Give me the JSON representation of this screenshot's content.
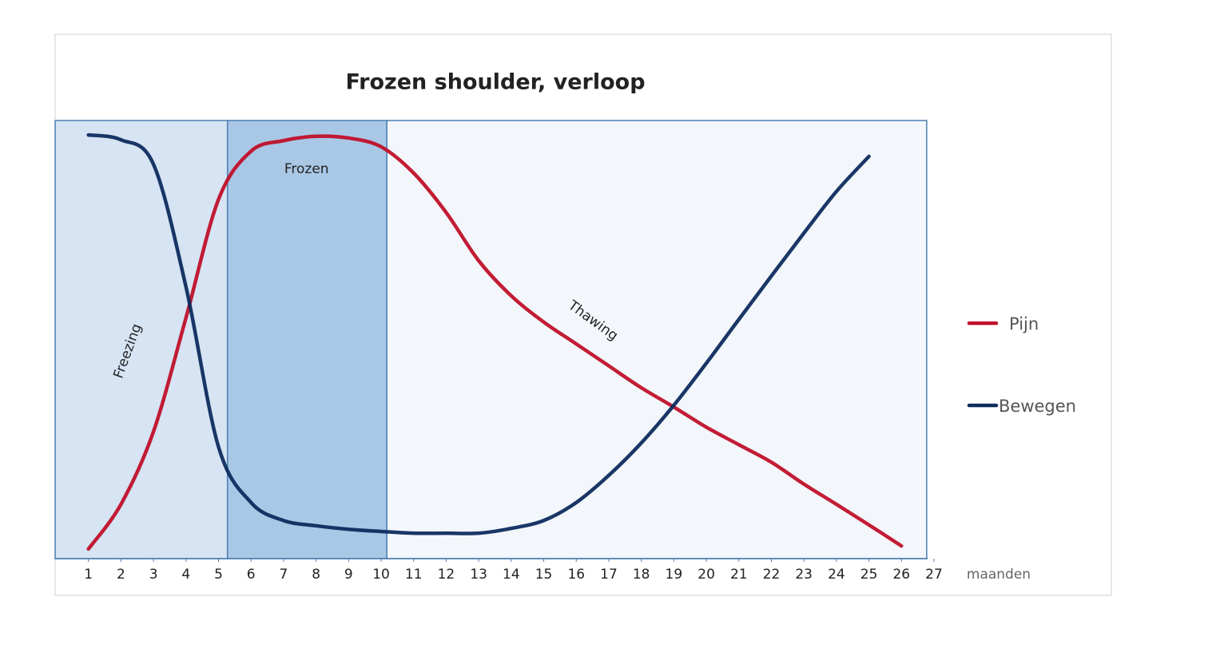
{
  "chart_data": {
    "type": "line",
    "title": "Frozen shoulder, verloop",
    "x_label": "maanden",
    "x": [
      1,
      2,
      3,
      4,
      5,
      6,
      7,
      8,
      9,
      10,
      11,
      12,
      13,
      14,
      15,
      16,
      17,
      18,
      19,
      20,
      21,
      22,
      23,
      24,
      25,
      26
    ],
    "series": [
      {
        "name": "Pijn",
        "color": "#c0102a",
        "values": [
          2.2,
          12.4,
          29,
          55,
          82,
          93,
          95.4,
          96.4,
          96,
          94,
          88,
          79,
          68,
          60,
          54,
          49,
          44,
          39,
          34.6,
          30,
          26,
          22,
          17,
          12.4,
          7.7,
          2.9
        ]
      },
      {
        "name": "Bewegen",
        "color": "#0d2b5e",
        "values": [
          96.7,
          95.6,
          90,
          62,
          25.5,
          12.8,
          8.7,
          7.5,
          6.7,
          6.2,
          5.8,
          5.8,
          5.8,
          6.9,
          8.7,
          12.8,
          19,
          26.4,
          35,
          44.6,
          54.6,
          64.5,
          74.3,
          83.8,
          91.8,
          null
        ]
      }
    ],
    "phases": [
      {
        "label": "Freezing",
        "start": 0,
        "end": 5.3,
        "color": "#d6e4f3"
      },
      {
        "label": "Frozen",
        "start": 5.3,
        "end": 10.2,
        "color": "#a9c8e6"
      },
      {
        "label": "Thawing",
        "start": 10.2,
        "end": 26.8,
        "color": "#f3f7fb"
      }
    ],
    "xlim": [
      0,
      27
    ],
    "xticks": [
      1,
      2,
      3,
      4,
      5,
      6,
      7,
      8,
      9,
      10,
      11,
      12,
      13,
      14,
      15,
      16,
      17,
      18,
      19,
      20,
      21,
      22,
      23,
      24,
      25,
      26,
      27
    ],
    "ylim": [
      0,
      100
    ],
    "legend": "right"
  }
}
